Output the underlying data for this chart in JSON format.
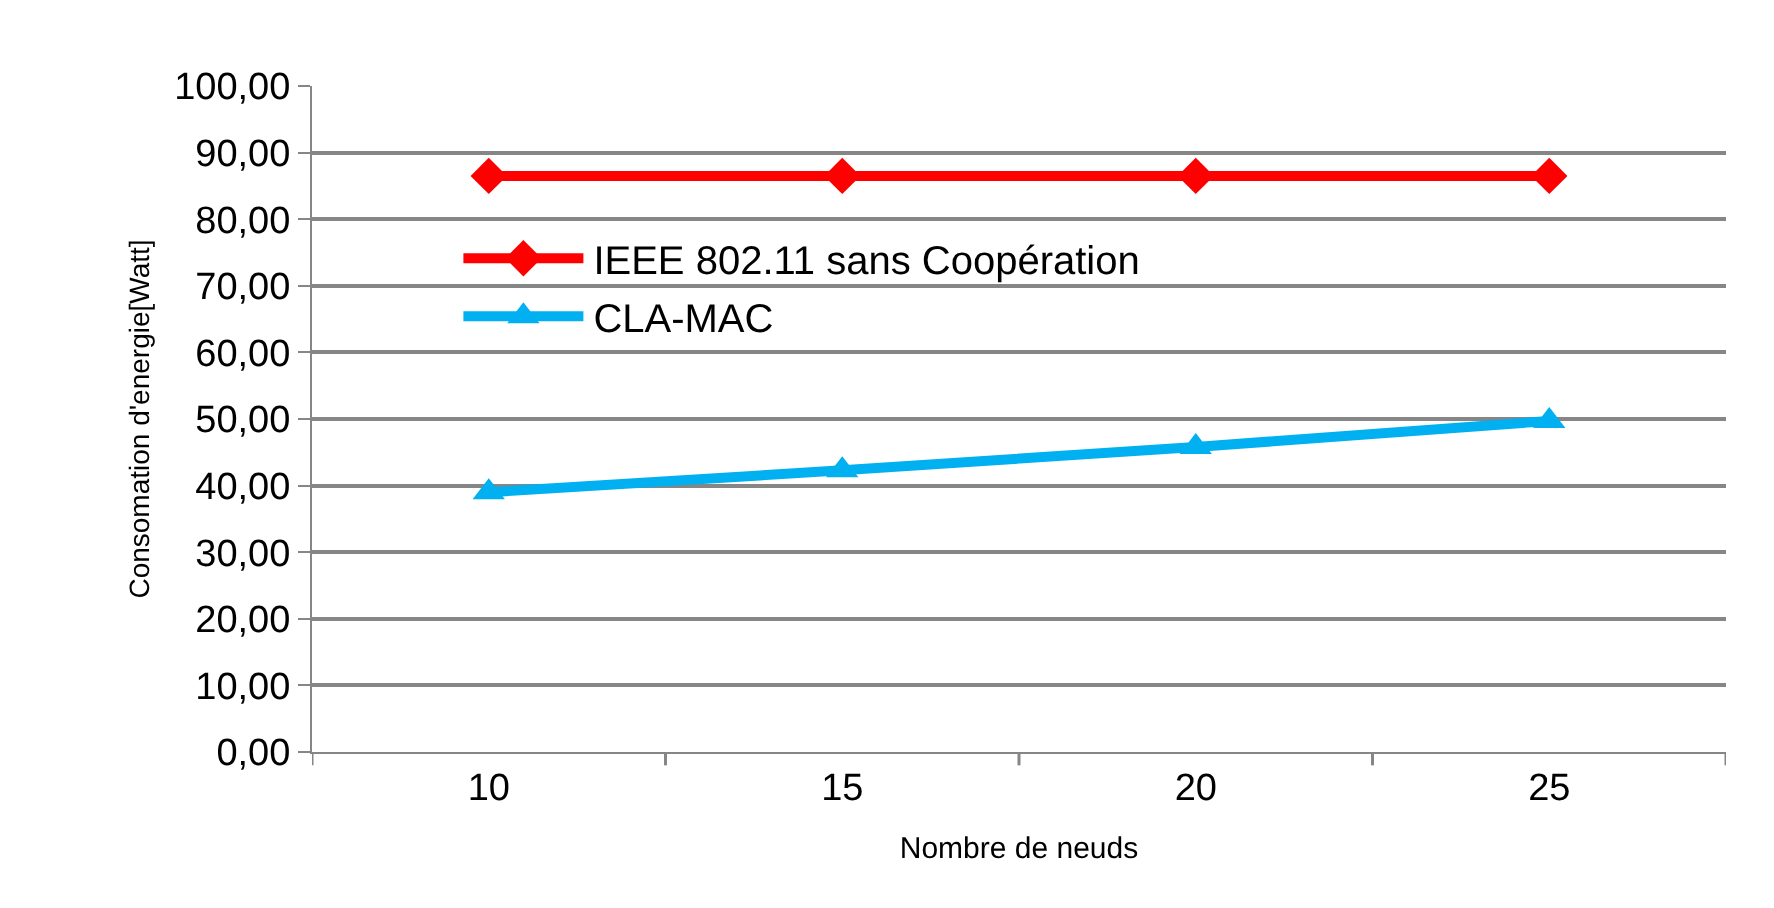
{
  "chart_data": {
    "type": "line",
    "xlabel": "Nombre de neuds",
    "ylabel": "Consomation d'energie[Watt]",
    "categories": [
      "10",
      "15",
      "20",
      "25"
    ],
    "series": [
      {
        "name": "IEEE 802.11 sans Coopération",
        "color": "#ff0000",
        "marker": "diamond",
        "values": [
          86.5,
          86.5,
          86.5,
          86.5
        ]
      },
      {
        "name": "CLA-MAC",
        "color": "#00b0f0",
        "marker": "triangle",
        "values": [
          39.0,
          42.3,
          45.8,
          49.7
        ]
      }
    ],
    "ylim": [
      0,
      100
    ],
    "yticks": [
      {
        "value": 0,
        "label": "0,00"
      },
      {
        "value": 10,
        "label": "10,00"
      },
      {
        "value": 20,
        "label": "20,00"
      },
      {
        "value": 30,
        "label": "30,00"
      },
      {
        "value": 40,
        "label": "40,00"
      },
      {
        "value": 50,
        "label": "50,00"
      },
      {
        "value": 60,
        "label": "60,00"
      },
      {
        "value": 70,
        "label": "70,00"
      },
      {
        "value": 80,
        "label": "80,00"
      },
      {
        "value": 90,
        "label": "90,00"
      },
      {
        "value": 100,
        "label": "100,00"
      }
    ],
    "grid": "y",
    "legend": "left",
    "line_style": "solid"
  }
}
